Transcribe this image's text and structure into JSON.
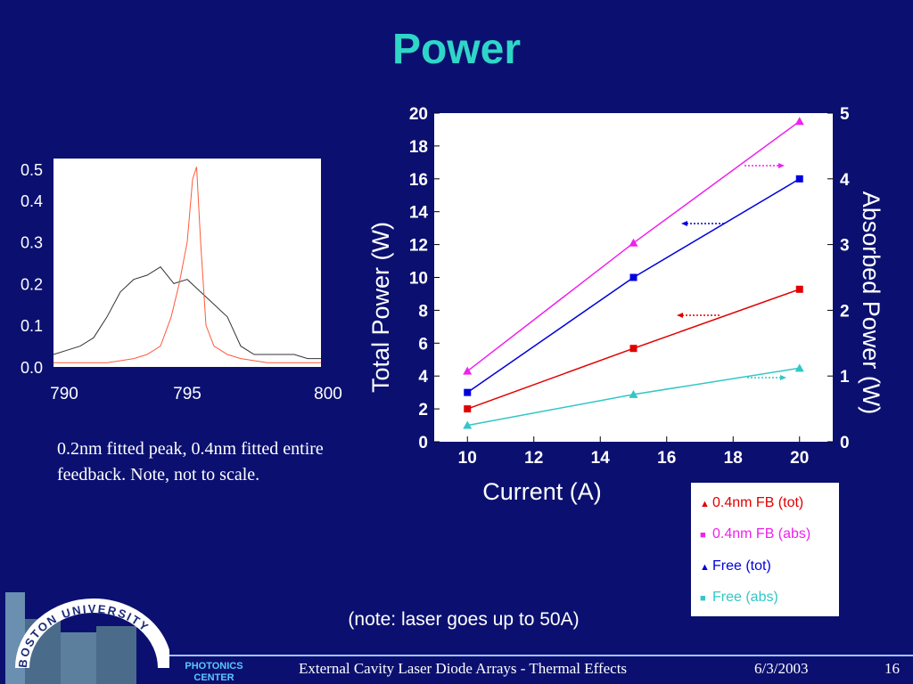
{
  "slide": {
    "title": "Power",
    "note_left": "0.2nm fitted peak, 0.4nm fitted entire feedback. Note, not to scale.",
    "note_bottom": "(note: laser goes up to 50A)"
  },
  "footer": {
    "title": "External Cavity Laser Diode Arrays - Thermal Effects",
    "date": "6/3/2003",
    "page": "16",
    "logo_text": "BOSTON UNIVERSITY",
    "center_line1": "PHOTONICS",
    "center_line2": "CENTER"
  },
  "colors": {
    "background": "#0b1070",
    "title": "#2fd6c8",
    "red": "#e00000",
    "magenta": "#ee22ee",
    "blue": "#0000dd",
    "cyan": "#33c6c6",
    "spectrum_black": "#333333",
    "spectrum_red": "#ff5a3a"
  },
  "chart_data": [
    {
      "type": "line",
      "title": "",
      "xlabel": "",
      "ylabel": "",
      "xlim": [
        790,
        800
      ],
      "ylim": [
        0.0,
        0.5
      ],
      "x_ticks": [
        "790",
        "795",
        "800"
      ],
      "y_ticks": [
        "0.0",
        "0.1",
        "0.2",
        "0.3",
        "0.4",
        "0.5"
      ],
      "series": [
        {
          "color": "#333333",
          "x": [
            790,
            790.5,
            791,
            791.5,
            792,
            792.5,
            793,
            793.5,
            794,
            794.5,
            795,
            795.5,
            796,
            796.5,
            797,
            797.5,
            798,
            798.5,
            799,
            799.5,
            800
          ],
          "y": [
            0.03,
            0.04,
            0.05,
            0.07,
            0.12,
            0.18,
            0.21,
            0.22,
            0.24,
            0.2,
            0.21,
            0.18,
            0.15,
            0.12,
            0.05,
            0.03,
            0.03,
            0.03,
            0.03,
            0.02,
            0.02
          ]
        },
        {
          "color": "#ff5a3a",
          "x": [
            790,
            791,
            792,
            793,
            793.5,
            794,
            794.4,
            794.7,
            795,
            795.2,
            795.35,
            795.5,
            795.7,
            796,
            796.5,
            797,
            798,
            799,
            800
          ],
          "y": [
            0.01,
            0.01,
            0.01,
            0.02,
            0.03,
            0.05,
            0.12,
            0.2,
            0.3,
            0.45,
            0.48,
            0.3,
            0.1,
            0.05,
            0.03,
            0.02,
            0.01,
            0.01,
            0.01
          ]
        }
      ]
    },
    {
      "type": "line",
      "title": "",
      "xlabel": "Current (A)",
      "ylabel": "Total Power (W)",
      "y2label": "Absorbed Power (W)",
      "xlim": [
        9,
        21
      ],
      "ylim": [
        0,
        20
      ],
      "y2lim": [
        0,
        5
      ],
      "x_ticks": [
        10,
        12,
        14,
        16,
        18,
        20
      ],
      "y_ticks": [
        0,
        2,
        4,
        6,
        8,
        10,
        12,
        14,
        16,
        18,
        20
      ],
      "y2_ticks": [
        0,
        1,
        2,
        3,
        4,
        5
      ],
      "grid": false,
      "legend_position": "below-right",
      "series": [
        {
          "name": "0.4nm FB (tot)",
          "marker": "triangle",
          "color": "#ee22ee",
          "axis": "left",
          "x": [
            10,
            15,
            20
          ],
          "y": [
            4.3,
            12.1,
            19.5
          ]
        },
        {
          "name": "0.4nm FB (abs)",
          "marker": "square",
          "color": "#e00000",
          "axis": "right",
          "x": [
            10,
            15,
            20
          ],
          "y": [
            0.5,
            1.42,
            2.32
          ]
        },
        {
          "name": "Free (tot)",
          "marker": "square",
          "color": "#0000dd",
          "axis": "left",
          "x": [
            10,
            15,
            20
          ],
          "y": [
            3.0,
            10.0,
            16.0
          ]
        },
        {
          "name": "Free (abs)",
          "marker": "triangle",
          "color": "#33c6c6",
          "axis": "right",
          "x": [
            10,
            15,
            20
          ],
          "y": [
            0.25,
            0.72,
            1.12
          ]
        }
      ],
      "legend": [
        {
          "label": "0.4nm FB (tot)",
          "marker": "triangle",
          "marker_color": "#e00000",
          "text_color": "#e00000"
        },
        {
          "label": "0.4nm FB (abs)",
          "marker": "square",
          "marker_color": "#ee22ee",
          "text_color": "#ee22ee"
        },
        {
          "label": "Free (tot)",
          "marker": "triangle",
          "marker_color": "#0000dd",
          "text_color": "#0000dd"
        },
        {
          "label": "Free (abs)",
          "marker": "square",
          "marker_color": "#33c6c6",
          "text_color": "#33c6c6"
        }
      ]
    }
  ]
}
